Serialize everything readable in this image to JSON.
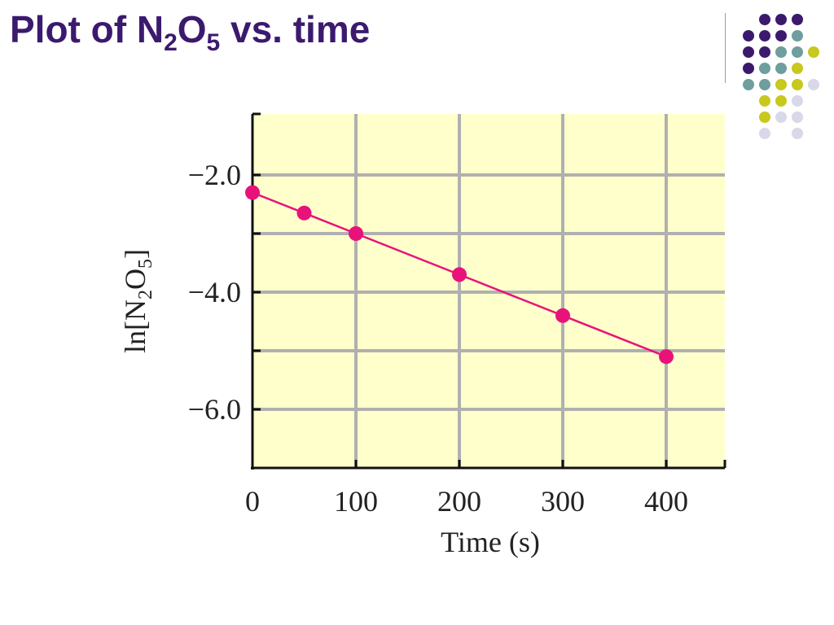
{
  "slide": {
    "title_pre": "Plot of N",
    "title_sub1": "2",
    "title_mid": "O",
    "title_sub2": "5",
    "title_post": " vs. time"
  },
  "colors": {
    "title": "#3b1a6e",
    "plot_background": "#ffffcc",
    "grid": "#b0b0b0",
    "series": "#e8127a",
    "dot_purple": "#3b1a6e",
    "dot_teal": "#6e9e9e",
    "dot_yellow": "#c8c81e",
    "dot_lavender": "#d8d8e8"
  },
  "decoration_icon": "dot-grid-decoration-icon",
  "chart_data": {
    "type": "line",
    "title": "",
    "xlabel": "Time (s)",
    "ylabel_pre": "ln[N",
    "ylabel_sub1": "2",
    "ylabel_mid": "O",
    "ylabel_sub2": "5",
    "ylabel_post": "]",
    "xlim": [
      0,
      460
    ],
    "ylim": [
      -7.0,
      -1.0
    ],
    "x_ticks": [
      0,
      100,
      200,
      300,
      400
    ],
    "x_tick_labels": [
      "0",
      "100",
      "200",
      "300",
      "400"
    ],
    "y_ticks": [
      -2.0,
      -4.0,
      -6.0
    ],
    "y_tick_labels": [
      "−2.0",
      "−4.0",
      "−6.0"
    ],
    "grid": true,
    "series": [
      {
        "x": [
          0,
          50,
          100,
          200,
          300,
          400
        ],
        "y": [
          -2.3,
          -2.65,
          -3.0,
          -3.7,
          -4.4,
          -5.1
        ]
      }
    ]
  }
}
